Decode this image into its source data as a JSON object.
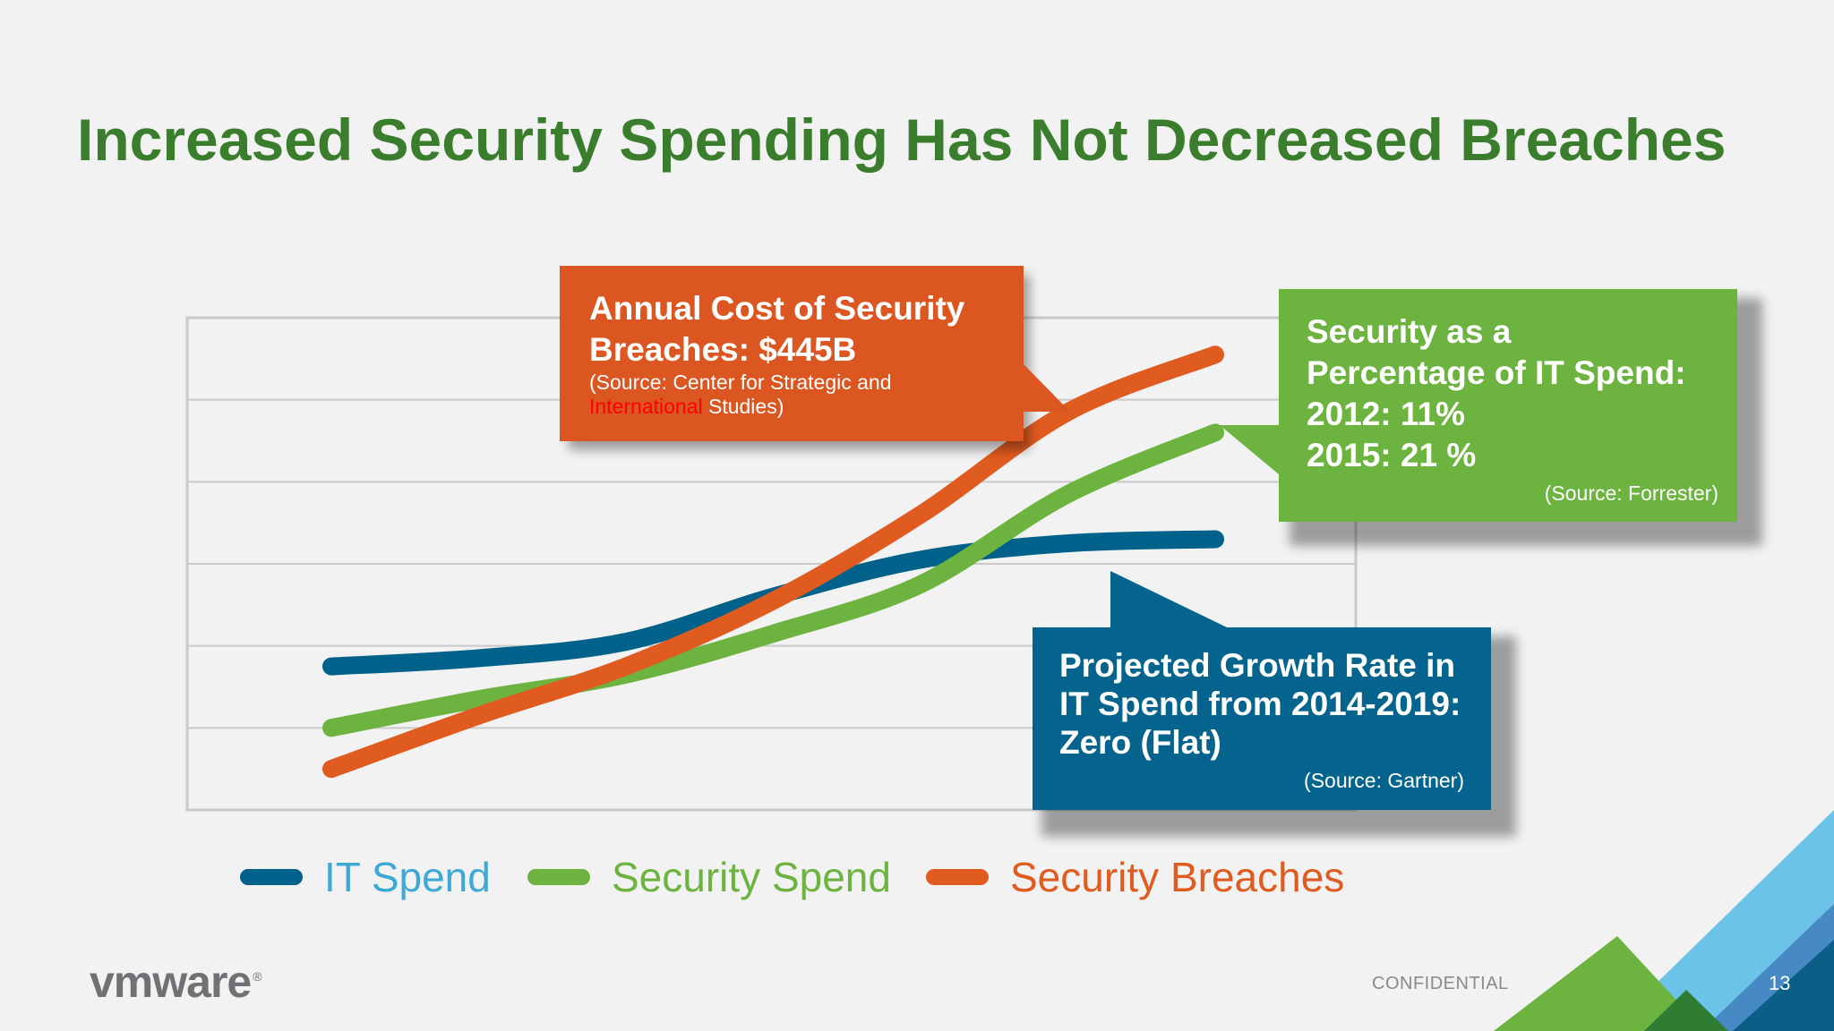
{
  "slide": {
    "title": "Increased Security Spending Has Not Decreased Breaches",
    "title_color": "#3a7d2c",
    "confidential": "CONFIDENTIAL",
    "page_number": "13",
    "logo_text": "vmware",
    "logo_mark": "®"
  },
  "colors": {
    "it_spend": "#00628b",
    "security_spend": "#6db33f",
    "security_breaches": "#e05b1f",
    "legend_it_text": "#3fa9d6",
    "gridline": "#c9c9c9",
    "plot_bg": "#f2f2f2"
  },
  "callouts": {
    "breach_cost": {
      "line1": "Annual Cost of Security",
      "line2": "Breaches: $445B",
      "source_a": "(Source: Center for Strategic and",
      "source_b_highlight": "International",
      "source_b_rest": " Studies)",
      "highlight_color": "#ff0000"
    },
    "security_pct": {
      "line1": "Security as a",
      "line2": "Percentage of IT Spend:",
      "line3": "2012: 11%",
      "line4": "2015: 21 %",
      "source": "(Source: Forrester)"
    },
    "growth_rate": {
      "line1": "Projected Growth Rate in",
      "line2": "IT Spend from 2014-2019:",
      "line3": "Zero (Flat)",
      "source": "(Source: Gartner)"
    }
  },
  "chart_data": {
    "type": "line",
    "title": "Increased Security Spending Has Not Decreased Breaches",
    "x": [
      0,
      1,
      2,
      3,
      4,
      5,
      6
    ],
    "ylim": [
      0,
      6
    ],
    "grid": true,
    "legend_position": "bottom",
    "series": [
      {
        "name": "IT Spend",
        "values": [
          1.75,
          1.85,
          2.05,
          2.6,
          3.05,
          3.25,
          3.3
        ]
      },
      {
        "name": "Security Spend",
        "values": [
          1.0,
          1.35,
          1.65,
          2.15,
          2.75,
          3.85,
          4.6
        ]
      },
      {
        "name": "Security Breaches",
        "values": [
          0.5,
          1.15,
          1.75,
          2.55,
          3.6,
          4.85,
          5.55
        ]
      }
    ]
  }
}
